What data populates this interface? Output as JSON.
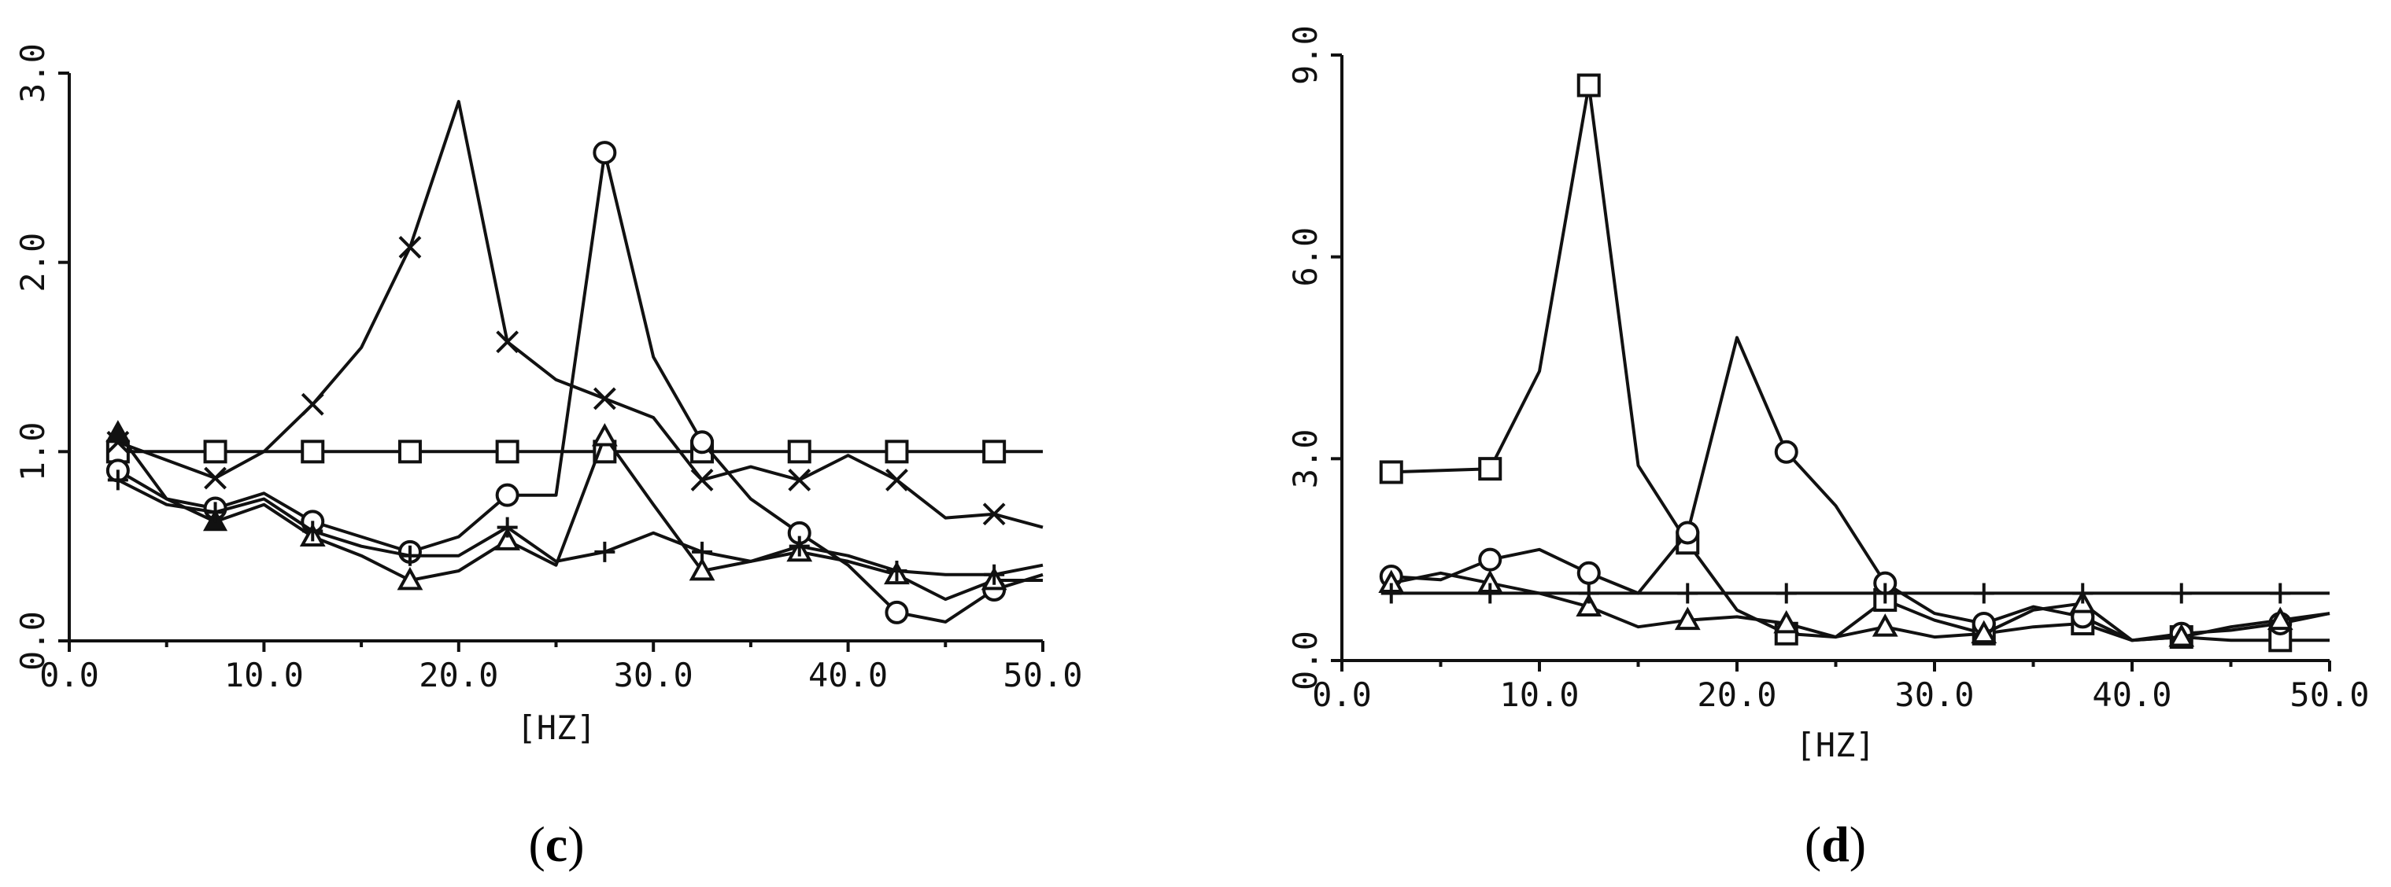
{
  "chart_data": [
    {
      "type": "line",
      "panel_label": "c",
      "xlabel": "[HZ]",
      "ylabel": "",
      "xlim": [
        0,
        50
      ],
      "ylim": [
        0,
        3
      ],
      "x_ticks": [
        "0.0",
        "10.0",
        "20.0",
        "30.0",
        "40.0",
        "50.0"
      ],
      "y_ticks": [
        "0.0",
        "1.0",
        "2.0",
        "3.0"
      ],
      "x_tick_values": [
        0,
        10,
        20,
        30,
        40,
        50
      ],
      "y_tick_values": [
        0,
        1,
        2,
        3
      ],
      "grid": false,
      "legend": "none",
      "series": [
        {
          "marker": "square",
          "x": [
            2.5,
            7.5,
            12.5,
            17.5,
            22.5,
            27.5,
            32.5,
            37.5,
            42.5,
            47.5,
            50
          ],
          "y": [
            1.0,
            1.0,
            1.0,
            1.0,
            1.0,
            1.0,
            1.0,
            1.0,
            1.0,
            1.0,
            1.0
          ],
          "marked": [
            true,
            true,
            true,
            true,
            true,
            true,
            true,
            true,
            true,
            true,
            false
          ]
        },
        {
          "marker": "x",
          "x": [
            2.5,
            7.5,
            10,
            12.5,
            15,
            17.5,
            20,
            22.5,
            25,
            27.5,
            30,
            32.5,
            35,
            37.5,
            40,
            42.5,
            45,
            47.5,
            50
          ],
          "y": [
            1.05,
            0.86,
            1.0,
            1.25,
            1.55,
            2.08,
            2.85,
            1.58,
            1.38,
            1.28,
            1.18,
            0.85,
            0.92,
            0.85,
            0.98,
            0.85,
            0.65,
            0.67,
            0.6
          ],
          "marked": [
            true,
            true,
            false,
            true,
            false,
            true,
            false,
            true,
            false,
            true,
            false,
            true,
            false,
            true,
            false,
            true,
            false,
            true,
            false
          ]
        },
        {
          "marker": "circle",
          "x": [
            2.5,
            5,
            7.5,
            10,
            12.5,
            15,
            17.5,
            20,
            22.5,
            25,
            27.5,
            30,
            32.5,
            35,
            37.5,
            40,
            42.5,
            45,
            47.5,
            50
          ],
          "y": [
            0.9,
            0.75,
            0.7,
            0.78,
            0.63,
            0.55,
            0.47,
            0.55,
            0.77,
            0.77,
            2.58,
            1.5,
            1.05,
            0.75,
            0.57,
            0.4,
            0.15,
            0.1,
            0.27,
            0.35
          ],
          "marked": [
            true,
            false,
            true,
            false,
            true,
            false,
            true,
            false,
            true,
            false,
            true,
            false,
            true,
            false,
            true,
            false,
            true,
            false,
            true,
            false
          ]
        },
        {
          "marker": "triangle",
          "x": [
            2.5,
            5,
            7.5,
            10,
            12.5,
            15,
            17.5,
            20,
            22.5,
            25,
            27.5,
            30,
            32.5,
            35,
            37.5,
            40,
            42.5,
            45,
            47.5,
            50
          ],
          "y": [
            1.1,
            0.75,
            0.63,
            0.72,
            0.55,
            0.45,
            0.32,
            0.37,
            0.53,
            0.4,
            1.08,
            0.72,
            0.37,
            0.42,
            0.47,
            0.42,
            0.35,
            0.22,
            0.32,
            0.32
          ],
          "marked": [
            true,
            false,
            true,
            false,
            true,
            false,
            true,
            false,
            true,
            false,
            true,
            false,
            true,
            false,
            true,
            false,
            true,
            false,
            true,
            false
          ]
        },
        {
          "marker": "plus",
          "x": [
            2.5,
            5,
            7.5,
            10,
            12.5,
            15,
            17.5,
            20,
            22.5,
            25,
            27.5,
            30,
            32.5,
            35,
            37.5,
            40,
            42.5,
            45,
            47.5,
            50
          ],
          "y": [
            0.85,
            0.72,
            0.68,
            0.75,
            0.58,
            0.5,
            0.45,
            0.45,
            0.6,
            0.42,
            0.47,
            0.57,
            0.47,
            0.42,
            0.5,
            0.45,
            0.37,
            0.35,
            0.35,
            0.4
          ],
          "marked": [
            true,
            false,
            true,
            false,
            true,
            false,
            true,
            false,
            true,
            false,
            true,
            false,
            true,
            false,
            true,
            false,
            true,
            false,
            true,
            false
          ]
        }
      ]
    },
    {
      "type": "line",
      "panel_label": "d",
      "xlabel": "[HZ]",
      "ylabel": "",
      "xlim": [
        0,
        50
      ],
      "ylim": [
        0,
        9
      ],
      "x_ticks": [
        "0.0",
        "10.0",
        "20.0",
        "30.0",
        "40.0",
        "50.0"
      ],
      "y_ticks": [
        "0.0",
        "3.0",
        "6.0",
        "9.0"
      ],
      "x_tick_values": [
        0,
        10,
        20,
        30,
        40,
        50
      ],
      "y_tick_values": [
        0,
        3,
        6,
        9
      ],
      "grid": false,
      "legend": "none",
      "series": [
        {
          "marker": "square",
          "x": [
            2.5,
            7.5,
            10,
            12.5,
            15,
            17.5,
            20,
            22.5,
            25,
            27.5,
            30,
            32.5,
            35,
            37.5,
            40,
            42.5,
            45,
            47.5,
            50
          ],
          "y": [
            2.8,
            2.85,
            4.3,
            8.55,
            2.9,
            1.75,
            0.75,
            0.4,
            0.35,
            0.9,
            0.6,
            0.4,
            0.5,
            0.55,
            0.3,
            0.35,
            0.3,
            0.3,
            0.3
          ],
          "marked": [
            true,
            true,
            false,
            true,
            false,
            true,
            false,
            true,
            false,
            true,
            false,
            true,
            false,
            true,
            false,
            true,
            false,
            true,
            false
          ]
        },
        {
          "marker": "circle",
          "x": [
            2.5,
            5,
            7.5,
            10,
            12.5,
            15,
            17.5,
            20,
            22.5,
            25,
            27.5,
            30,
            32.5,
            35,
            37.5,
            40,
            42.5,
            45,
            47.5,
            50
          ],
          "y": [
            1.25,
            1.2,
            1.5,
            1.65,
            1.3,
            1.0,
            1.9,
            4.8,
            3.1,
            2.3,
            1.15,
            0.7,
            0.55,
            0.8,
            0.65,
            0.3,
            0.4,
            0.45,
            0.55,
            0.7
          ],
          "marked": [
            true,
            false,
            true,
            false,
            true,
            false,
            true,
            false,
            true,
            false,
            true,
            false,
            true,
            false,
            true,
            false,
            true,
            false,
            true,
            false
          ]
        },
        {
          "marker": "triangle",
          "x": [
            2.5,
            5,
            7.5,
            10,
            12.5,
            15,
            17.5,
            20,
            22.5,
            25,
            27.5,
            30,
            32.5,
            35,
            37.5,
            40,
            42.5,
            45,
            47.5,
            50
          ],
          "y": [
            1.15,
            1.3,
            1.15,
            1.0,
            0.8,
            0.5,
            0.6,
            0.65,
            0.55,
            0.35,
            0.5,
            0.35,
            0.4,
            0.75,
            0.85,
            0.3,
            0.35,
            0.5,
            0.6,
            0.7
          ],
          "marked": [
            true,
            false,
            true,
            false,
            true,
            false,
            true,
            false,
            true,
            false,
            true,
            false,
            true,
            false,
            true,
            false,
            true,
            false,
            true,
            false
          ]
        },
        {
          "marker": "plus",
          "x": [
            2.5,
            7.5,
            12.5,
            17.5,
            22.5,
            27.5,
            32.5,
            37.5,
            42.5,
            47.5,
            50
          ],
          "y": [
            1.0,
            1.0,
            1.0,
            1.0,
            1.0,
            1.0,
            1.0,
            1.0,
            1.0,
            1.0,
            1.0
          ],
          "marked": [
            true,
            true,
            true,
            true,
            true,
            true,
            true,
            true,
            true,
            true,
            false
          ]
        }
      ]
    }
  ]
}
